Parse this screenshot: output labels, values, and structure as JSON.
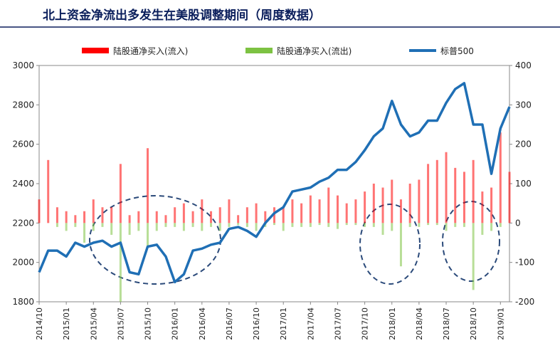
{
  "chart_data": {
    "type": "bar_line",
    "title": "北上资金净流出多发生在美股调整期间（周度数据）",
    "categories": [
      "2014/10",
      null,
      null,
      "2015/01",
      null,
      null,
      "2015/04",
      null,
      null,
      "2015/07",
      null,
      null,
      "2015/10",
      null,
      null,
      "2016/01",
      null,
      null,
      "2016/04",
      null,
      null,
      "2016/07",
      null,
      null,
      "2016/10",
      null,
      null,
      "2017/01",
      null,
      null,
      "2017/04",
      null,
      null,
      "2017/07",
      null,
      null,
      "2017/10",
      null,
      null,
      "2018/01",
      null,
      null,
      "2018/04",
      null,
      null,
      "2018/07",
      null,
      null,
      "2018/10",
      null,
      null,
      "2019/01",
      null
    ],
    "series": [
      {
        "name": "陆股通净买入(流入)",
        "color": "#ff0000",
        "axis": "y2",
        "values": [
          60,
          160,
          40,
          30,
          20,
          30,
          60,
          40,
          40,
          150,
          20,
          30,
          190,
          30,
          20,
          40,
          50,
          30,
          60,
          30,
          40,
          60,
          20,
          40,
          50,
          30,
          40,
          40,
          60,
          50,
          70,
          60,
          90,
          70,
          50,
          60,
          80,
          100,
          90,
          110,
          60,
          100,
          110,
          150,
          160,
          180,
          140,
          130,
          160,
          80,
          90,
          230,
          130
        ]
      },
      {
        "name": "陆股通净买入(流出)",
        "color": "#7dc242",
        "axis": "y2",
        "values": [
          0,
          0,
          -10,
          -20,
          -10,
          -50,
          -20,
          -10,
          -30,
          -200,
          -30,
          -20,
          -60,
          -20,
          -10,
          -10,
          -20,
          -10,
          -20,
          -10,
          -20,
          -10,
          -5,
          -10,
          -20,
          -10,
          -5,
          -20,
          -10,
          -10,
          -10,
          -5,
          -10,
          -15,
          -5,
          -5,
          -10,
          -10,
          -30,
          -20,
          -110,
          -10,
          -10,
          -5,
          -5,
          -20,
          -10,
          -10,
          -170,
          -30,
          -20,
          -10,
          0
        ]
      },
      {
        "name": "标普500",
        "color": "#1f6fb5",
        "type": "line",
        "values": [
          1950,
          2060,
          2060,
          2030,
          2100,
          2080,
          2100,
          2110,
          2080,
          2100,
          1950,
          1940,
          2080,
          2090,
          2030,
          1900,
          1940,
          2060,
          2070,
          2090,
          2100,
          2170,
          2180,
          2160,
          2130,
          2200,
          2250,
          2280,
          2360,
          2370,
          2380,
          2410,
          2430,
          2470,
          2470,
          2510,
          2570,
          2640,
          2680,
          2820,
          2700,
          2640,
          2660,
          2720,
          2720,
          2810,
          2880,
          2910,
          2700,
          2700,
          2450,
          2680,
          2790
        ]
      }
    ],
    "ylim": [
      1800,
      3000
    ],
    "yticks": [
      1800,
      2000,
      2200,
      2400,
      2600,
      2800,
      3000
    ],
    "y2lim": [
      -200,
      400
    ],
    "y2ticks": [
      -200,
      -100,
      0,
      100,
      200,
      300,
      400
    ],
    "legend": "top"
  }
}
